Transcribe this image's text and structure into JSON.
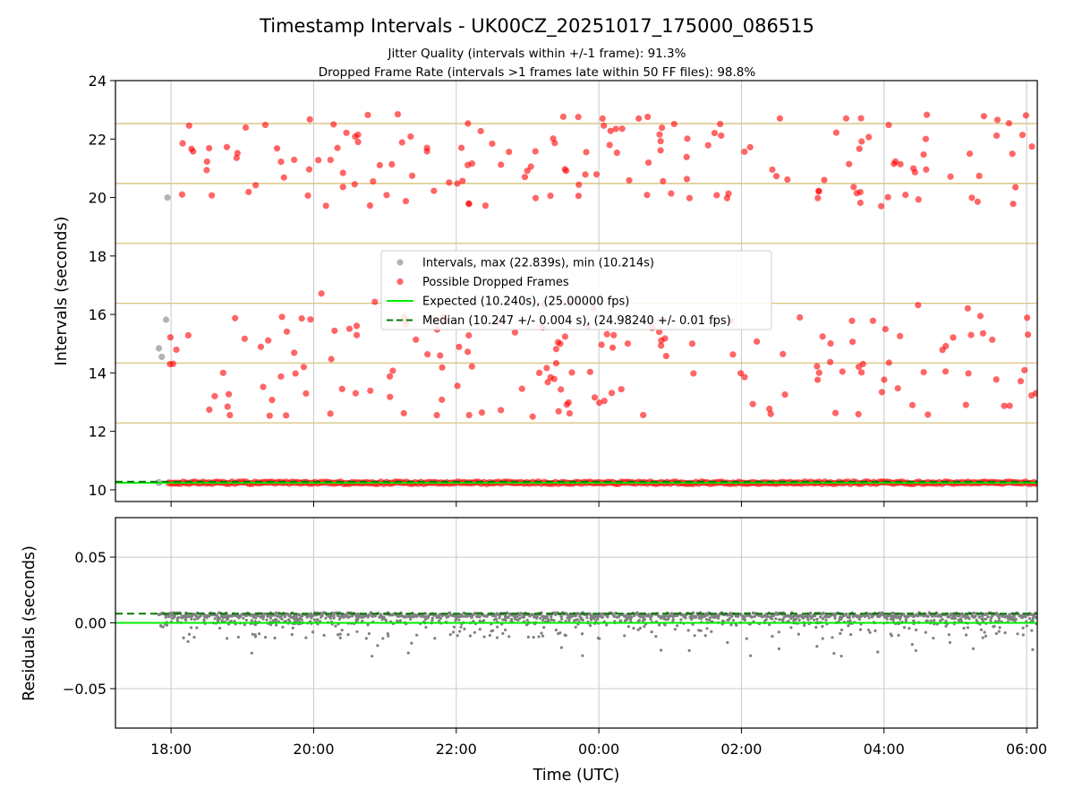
{
  "chart_data": {
    "type": "scatter",
    "title": "Timestamp Intervals - UK00CZ_20251017_175000_086515",
    "subtitles": [
      "Jitter Quality (intervals within +/-1 frame): 91.3%",
      "Dropped Frame Rate (intervals >1 frames late within 50 FF files): 98.8%"
    ],
    "xlabel": "Time (UTC)",
    "x_ticks": [
      {
        "hour": 18,
        "label": "18:00"
      },
      {
        "hour": 20,
        "label": "20:00"
      },
      {
        "hour": 22,
        "label": "22:00"
      },
      {
        "hour": 24,
        "label": "00:00"
      },
      {
        "hour": 26,
        "label": "02:00"
      },
      {
        "hour": 28,
        "label": "04:00"
      },
      {
        "hour": 30,
        "label": "06:00"
      }
    ],
    "xlim_hours": [
      17.22,
      30.15
    ],
    "top": {
      "ylabel": "Intervals (seconds)",
      "ylim": [
        9.6,
        24.0
      ],
      "y_ticks": [
        10,
        12,
        14,
        16,
        18,
        20,
        22,
        24
      ],
      "gold_gridlines": [
        10.24,
        12.29,
        14.34,
        16.38,
        18.43,
        20.48,
        22.53
      ],
      "gold_color": "#d4bb6e",
      "expected_interval": 10.24,
      "median_interval": 10.247,
      "dense_band": {
        "from_hour": 17.97,
        "to_hour": 30.15,
        "value": 10.24
      },
      "gray_points": [
        {
          "x": 17.83,
          "y": 14.84
        },
        {
          "x": 17.87,
          "y": 14.55
        },
        {
          "x": 17.93,
          "y": 15.82
        },
        {
          "x": 17.95,
          "y": 20.0
        },
        {
          "x": 17.83,
          "y": 10.25
        }
      ]
    },
    "bottom": {
      "ylabel": "Residuals (seconds)",
      "ylim": [
        -0.08,
        0.08
      ],
      "y_ticks": [
        0.05,
        0.0,
        -0.05
      ],
      "y_tick_labels": [
        "0.05",
        "0.00",
        "−0.05"
      ],
      "expected_residual": 0.0,
      "median_residual": 0.007,
      "main_band": {
        "from_hour": 17.83,
        "to_hour": 30.15,
        "value": 0.006
      }
    },
    "legend": {
      "placement": "center",
      "entries": [
        {
          "label": "Intervals, max (22.839s), min (10.214s)",
          "kind": "point",
          "color": "#808080"
        },
        {
          "label": "Possible Dropped Frames",
          "kind": "point",
          "color": "#ff0000"
        },
        {
          "label": "Expected (10.240s), (25.00000 fps)",
          "kind": "line",
          "color": "#00ee00"
        },
        {
          "label": "Median (10.247 +/- 0.004 s), (24.98240 +/- 0.01 fps)",
          "kind": "dashed",
          "color": "#007a00"
        }
      ]
    },
    "colors": {
      "gray": "#808080",
      "red": "#ff0000",
      "expected": "#00ee00",
      "median": "#007a00",
      "grid": "#c8c8c8"
    }
  }
}
